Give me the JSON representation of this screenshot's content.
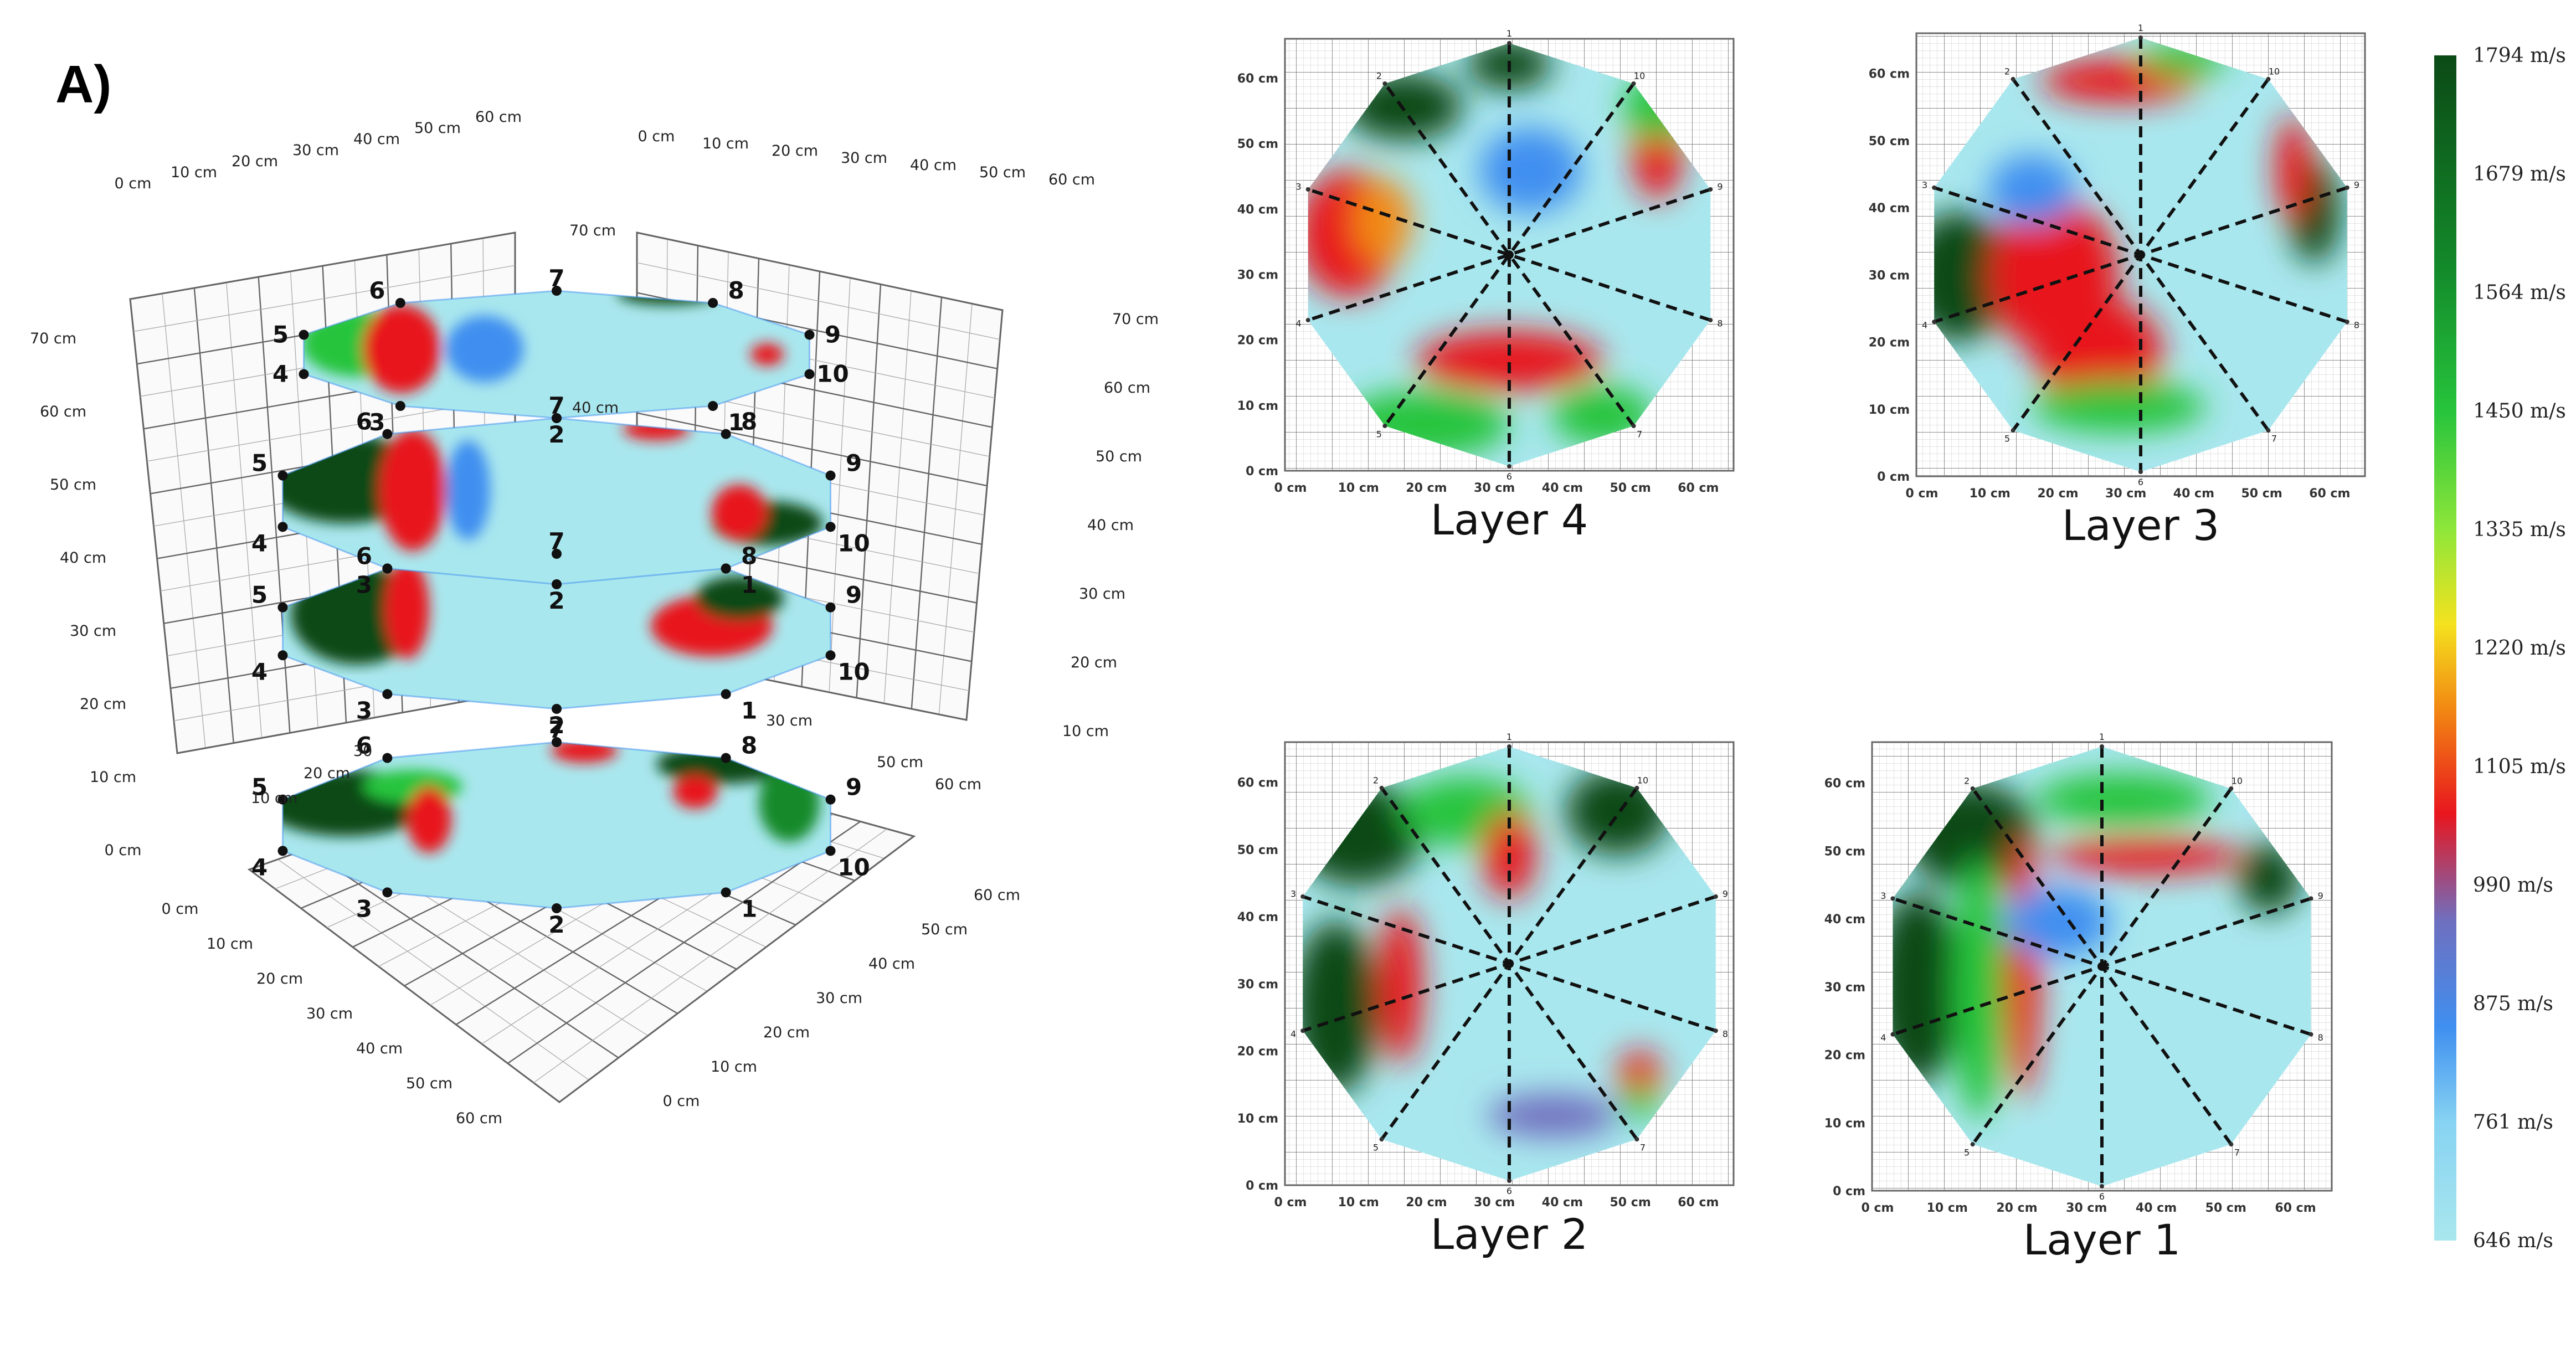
{
  "panel_label": "A)",
  "three_d": {
    "back_left_top": [
      "0 cm",
      "10 cm",
      "20 cm",
      "30 cm",
      "40 cm",
      "50 cm",
      "60 cm"
    ],
    "back_right_top": [
      "0 cm",
      "10 cm",
      "20 cm",
      "30 cm",
      "40 cm",
      "50 cm",
      "60 cm"
    ],
    "left_vertical": [
      "70 cm",
      "60 cm",
      "50 cm",
      "40 cm",
      "30 cm",
      "20 cm",
      "10 cm",
      "0 cm"
    ],
    "right_vertical": [
      "70 cm",
      "60 cm",
      "50 cm",
      "40 cm",
      "30 cm",
      "20 cm",
      "10 cm"
    ],
    "floor_left": [
      "0 cm",
      "10 cm",
      "20 cm",
      "30 cm",
      "40 cm",
      "50 cm",
      "60 cm"
    ],
    "floor_right": [
      "60 cm",
      "50 cm",
      "40 cm",
      "30 cm",
      "20 cm",
      "10 cm",
      "0 cm"
    ],
    "center_labels": [
      "70 cm",
      "40 cm",
      "30",
      "20 cm",
      "10 cm",
      "30 cm",
      "50 cm",
      "60 cm"
    ],
    "point_labels": [
      "1",
      "2",
      "3",
      "4",
      "5",
      "6",
      "7",
      "8",
      "9",
      "10"
    ]
  },
  "maps": {
    "x_ticks": [
      "0 cm",
      "10 cm",
      "20 cm",
      "30 cm",
      "40 cm",
      "50 cm",
      "60 cm"
    ],
    "y_ticks": [
      "0 cm",
      "10 cm",
      "20 cm",
      "30 cm",
      "40 cm",
      "50 cm",
      "60 cm"
    ],
    "spoke_labels": [
      "1",
      "2",
      "3",
      "4",
      "5",
      "6",
      "7",
      "8",
      "9",
      "10"
    ],
    "layers": [
      {
        "label": "Layer 4"
      },
      {
        "label": "Layer 3"
      },
      {
        "label": "Layer 2"
      },
      {
        "label": "Layer 1"
      }
    ]
  },
  "colorbar": {
    "labels": [
      "1794 m/s",
      "1679 m/s",
      "1564 m/s",
      "1450 m/s",
      "1335 m/s",
      "1220 m/s",
      "1105 m/s",
      "990 m/s",
      "875 m/s",
      "761 m/s",
      "646 m/s"
    ],
    "colors": [
      "#0b4a16",
      "#138a2a",
      "#27c43c",
      "#8ee63a",
      "#f4e21f",
      "#f28a12",
      "#e8161e",
      "#b03040",
      "#6f6fbf",
      "#3f8ff0",
      "#a9e7ee"
    ]
  }
}
